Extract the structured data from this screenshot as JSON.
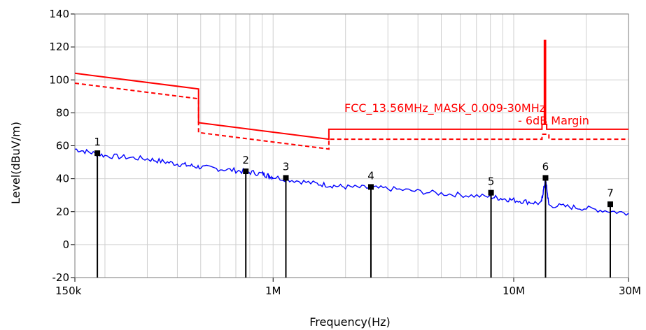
{
  "chart_data": {
    "type": "line",
    "title": "",
    "xlabel": "Frequency(Hz)",
    "ylabel": "Level(dBuV/m)",
    "x_scale": "log",
    "xlim": [
      150000,
      30000000
    ],
    "ylim": [
      -20,
      140
    ],
    "grid": true,
    "x_tick_labels": [
      {
        "value": 150000,
        "label": "150k"
      },
      {
        "value": 1000000,
        "label": "1M"
      },
      {
        "value": 10000000,
        "label": "10M"
      },
      {
        "value": 30000000,
        "label": "30M"
      }
    ],
    "y_ticks": [
      -20,
      0,
      20,
      40,
      60,
      80,
      100,
      120,
      140
    ],
    "series": [
      {
        "name": "FCC_13.56MHz_MASK_0.009-30MHz",
        "color": "#ff0000",
        "style": "solid",
        "x": [
          150000,
          490000,
          490000,
          1705000,
          1705000,
          13110000,
          13110000,
          13410000,
          13410000,
          13553000,
          13553000,
          13567000,
          13567000,
          13710000,
          13710000,
          14010000,
          14010000,
          30000000
        ],
        "y": [
          104,
          94.5,
          74,
          64,
          70,
          70,
          73,
          73,
          124,
          124,
          124,
          124,
          73,
          73,
          70,
          70,
          70,
          70
        ]
      },
      {
        "name": "- 6dB Margin",
        "color": "#ff0000",
        "style": "dashed",
        "x": [
          150000,
          490000,
          490000,
          1705000,
          1705000,
          13110000,
          13110000,
          13410000,
          13410000,
          14010000,
          14010000,
          30000000
        ],
        "y": [
          98,
          88.5,
          68,
          58,
          64,
          64,
          67,
          67,
          67,
          67,
          64,
          64
        ]
      },
      {
        "name": "",
        "color": "#0000ff",
        "style": "solid",
        "x": [
          150000,
          200000,
          300000,
          400000,
          500000,
          700000,
          900000,
          1000000,
          1500000,
          2000000,
          3000000,
          5000000,
          8000000,
          10000000,
          13000000,
          13560000,
          14000000,
          20000000,
          30000000
        ],
        "y": [
          58,
          54,
          52,
          49,
          47,
          45,
          43,
          41,
          37,
          35,
          34,
          31,
          29,
          27,
          25,
          40,
          24,
          22,
          19
        ]
      }
    ],
    "markers": [
      {
        "label": "1",
        "x": 186000,
        "y": 55.5
      },
      {
        "label": "2",
        "x": 770000,
        "y": 44.5
      },
      {
        "label": "3",
        "x": 1130000,
        "y": 40.5
      },
      {
        "label": "4",
        "x": 2550000,
        "y": 35
      },
      {
        "label": "5",
        "x": 8050000,
        "y": 31.5
      },
      {
        "label": "6",
        "x": 13560000,
        "y": 40.5
      },
      {
        "label": "7",
        "x": 25200000,
        "y": 24.5
      }
    ],
    "annotations": [
      {
        "text": "FCC_13.56MHz_MASK_0.009-30MHz",
        "color": "#ff0000"
      },
      {
        "text": "- 6dB Margin",
        "color": "#ff0000"
      }
    ]
  }
}
